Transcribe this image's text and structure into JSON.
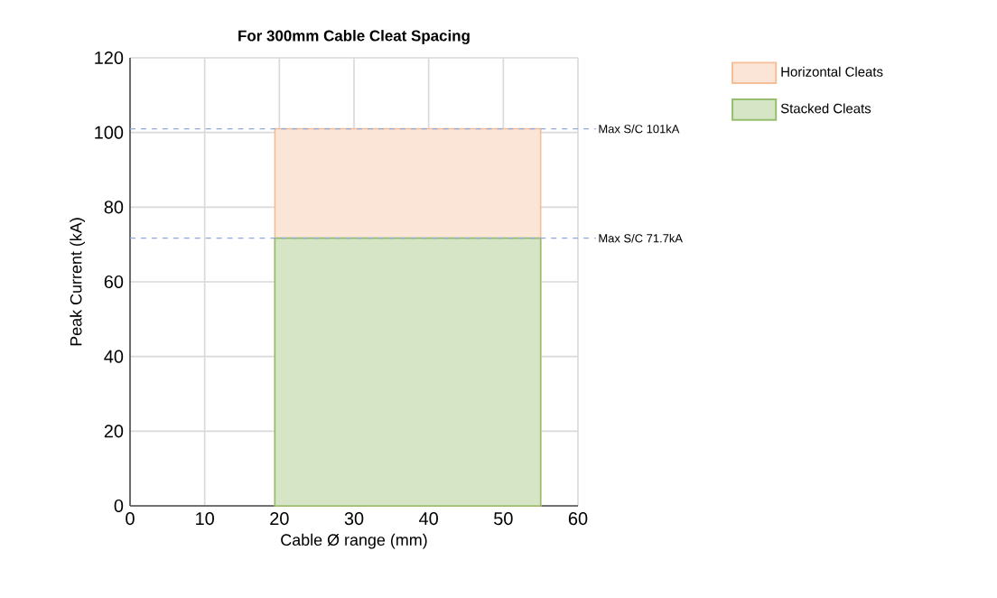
{
  "chart_data": {
    "type": "area",
    "title": "For 300mm Cable Cleat Spacing",
    "xlabel": "Cable Ø range (mm)",
    "ylabel": "Peak Current (kA)",
    "x": [
      19.4,
      55
    ],
    "series": [
      {
        "name": "Horizontal Cleats",
        "color": "#fbe5d6",
        "values": [
          101,
          101
        ]
      },
      {
        "name": "Stacked Cleats",
        "color": "#d5e5c5",
        "values": [
          71.7,
          71.7
        ]
      }
    ],
    "xlim": [
      0,
      60
    ],
    "xticks": [
      0,
      10,
      20,
      30,
      40,
      50,
      60
    ],
    "ylim": [
      0,
      120
    ],
    "yticks": [
      0,
      20,
      40,
      60,
      80,
      100,
      120
    ],
    "ref_lines": [
      {
        "axis": "y",
        "value": 101,
        "label": "Max S/C 101kA",
        "color": "#8ea9db",
        "line_style": "dashed"
      },
      {
        "axis": "y",
        "value": 71.7,
        "label": "Max S/C 71.7kA",
        "color": "#8ea9db",
        "line_style": "dashed"
      }
    ],
    "grid": true,
    "legend": "top right"
  }
}
